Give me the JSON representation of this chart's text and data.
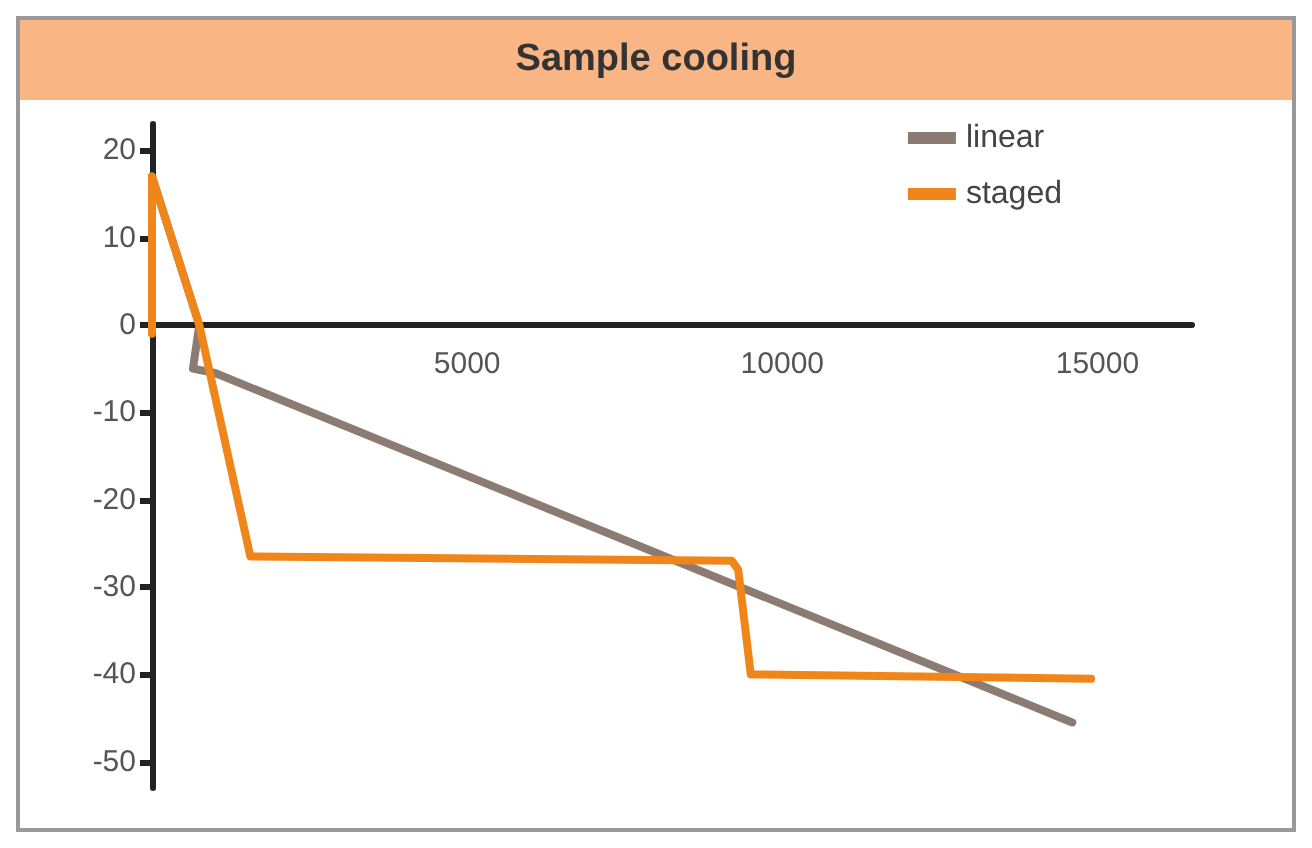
{
  "chart_data": {
    "type": "line",
    "title": "Sample cooling",
    "series": [
      {
        "name": "linear",
        "color": "#8b7b72",
        "x": [
          0,
          750,
          650,
          1000,
          14600
        ],
        "values": [
          17,
          0,
          -5,
          -5.5,
          -45.5
        ]
      },
      {
        "name": "staged",
        "color": "#f0851a",
        "x": [
          0,
          0,
          750,
          1560,
          9200,
          9300,
          9500,
          14900
        ],
        "values": [
          -1,
          17,
          0,
          -26.5,
          -27,
          -28,
          -40,
          -40.5
        ]
      }
    ],
    "xlim": [
      0,
      16500
    ],
    "xticks": [
      5000,
      10000,
      15000
    ],
    "ylim": [
      -53,
      23
    ],
    "yticks": [
      -50,
      -40,
      -30,
      -20,
      -10,
      0,
      10,
      20
    ],
    "grid": false,
    "legend": "top right",
    "marker": "none",
    "line_style": "solid"
  }
}
